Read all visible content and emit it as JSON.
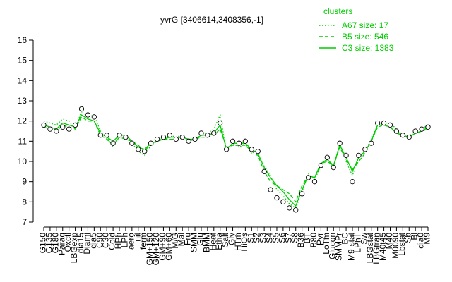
{
  "chart_data": {
    "type": "line",
    "title": "yvrG [3406614,3408356,-1]",
    "legend_title": "clusters",
    "legend_position": "top-right",
    "categories": [
      "G150",
      "G135",
      "G180",
      "Paraq",
      "Oxctl",
      "LBGexp",
      "dia15",
      "Diami",
      "dia5",
      "C90",
      "C30",
      "Cold",
      "HPh",
      "LPh",
      "aero",
      "nit",
      "ferm",
      "GM+150",
      "GM+120",
      "GM+90",
      "GM+60",
      "M/G",
      "Mal",
      "Fru",
      "SMM",
      "Glu",
      "BMM",
      "Heat",
      "Etha",
      "Salt",
      "Gly",
      "HTm",
      "HiOs",
      "S1",
      "S2",
      "S3",
      "S4",
      "S5",
      "S6",
      "S7",
      "S8",
      "B36",
      "BT",
      "B80",
      "Pyr",
      "LoTm",
      "Glucon",
      "SMMPr",
      "BC",
      "M9-stat",
      "LPhT",
      "Sw",
      "LBGstat",
      "LBGtran",
      "M40t45",
      "M40",
      "M0090",
      "Lbstat",
      "Sb",
      "Bl",
      "dia0",
      "M9"
    ],
    "values": [
      11.8,
      11.6,
      11.5,
      11.7,
      11.6,
      11.8,
      12.6,
      12.3,
      12.2,
      11.3,
      11.3,
      10.9,
      11.3,
      11.2,
      10.9,
      10.6,
      10.5,
      10.9,
      11.1,
      11.2,
      11.3,
      11.1,
      11.2,
      11.0,
      11.1,
      11.4,
      11.3,
      11.4,
      11.9,
      10.6,
      11.0,
      10.9,
      11.0,
      10.6,
      10.5,
      9.5,
      8.6,
      8.2,
      8.0,
      7.7,
      7.6,
      8.4,
      9.2,
      9.0,
      9.8,
      10.2,
      9.7,
      10.9,
      10.3,
      9.0,
      10.3,
      10.6,
      10.9,
      11.9,
      11.9,
      11.8,
      11.5,
      11.3,
      11.2,
      11.5,
      11.6,
      11.7
    ],
    "series": [
      {
        "name": "A67 size: 17",
        "color": "#00cc00",
        "style": "dotted",
        "values": [
          12.0,
          11.9,
          11.8,
          12.1,
          12.0,
          11.6,
          12.5,
          12.2,
          12.3,
          11.5,
          11.2,
          10.7,
          11.4,
          11.2,
          10.9,
          10.5,
          10.3,
          10.8,
          11.0,
          11.2,
          11.3,
          11.2,
          11.3,
          11.0,
          11.1,
          11.3,
          11.4,
          11.6,
          12.3,
          10.5,
          10.9,
          10.7,
          10.9,
          10.4,
          10.3,
          9.8,
          9.3,
          8.6,
          8.3,
          7.9,
          7.7,
          8.5,
          9.4,
          9.1,
          9.8,
          10.1,
          9.7,
          10.9,
          10.0,
          9.3,
          10.2,
          10.5,
          11.1,
          11.8,
          11.9,
          11.9,
          11.6,
          11.3,
          11.3,
          11.5,
          11.6,
          11.8
        ]
      },
      {
        "name": "B5 size: 546",
        "color": "#00cc00",
        "style": "dashed",
        "values": [
          11.7,
          11.6,
          11.5,
          11.8,
          11.7,
          11.6,
          12.2,
          12.0,
          12.0,
          11.3,
          11.1,
          10.8,
          11.2,
          11.1,
          11.0,
          10.8,
          10.5,
          10.9,
          11.0,
          11.1,
          11.1,
          11.1,
          11.2,
          11.0,
          11.1,
          11.2,
          11.2,
          11.3,
          11.6,
          10.7,
          10.8,
          10.8,
          10.8,
          10.5,
          10.3,
          9.5,
          9.0,
          8.8,
          8.6,
          8.4,
          8.0,
          8.8,
          9.3,
          9.2,
          9.9,
          10.0,
          9.8,
          10.7,
          10.1,
          9.6,
          10.0,
          10.4,
          11.0,
          11.7,
          11.8,
          11.7,
          11.4,
          11.3,
          11.2,
          11.4,
          11.5,
          11.6
        ]
      },
      {
        "name": "C3 size: 1383",
        "color": "#00cc00",
        "style": "solid",
        "values": [
          11.8,
          11.7,
          11.6,
          11.9,
          11.8,
          11.7,
          12.3,
          12.1,
          12.0,
          11.4,
          11.2,
          11.0,
          11.3,
          11.3,
          11.0,
          10.7,
          10.6,
          10.9,
          11.0,
          11.1,
          11.2,
          11.2,
          11.2,
          11.1,
          11.1,
          11.3,
          11.3,
          11.4,
          11.8,
          10.6,
          10.9,
          10.9,
          10.9,
          10.6,
          10.4,
          9.7,
          9.2,
          8.8,
          8.5,
          8.1,
          7.8,
          8.6,
          9.3,
          9.2,
          9.9,
          10.1,
          9.8,
          10.8,
          10.2,
          9.5,
          10.2,
          10.5,
          11.0,
          11.8,
          11.8,
          11.7,
          11.4,
          11.3,
          11.2,
          11.4,
          11.5,
          11.7
        ]
      }
    ],
    "ylim": [
      7,
      16
    ],
    "yticks": [
      7,
      8,
      9,
      10,
      11,
      12,
      13,
      14,
      15,
      16
    ]
  }
}
